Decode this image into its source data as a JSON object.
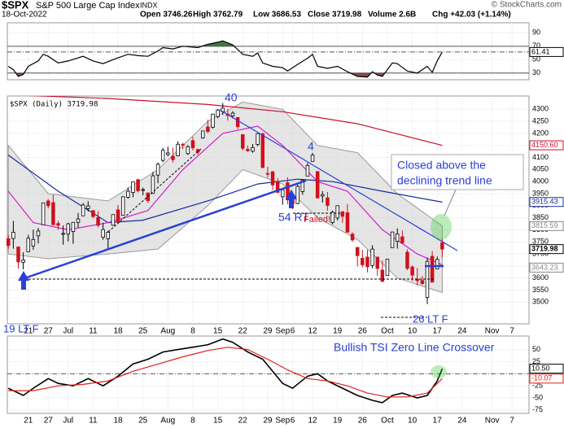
{
  "header": {
    "symbol": "$SPX",
    "name": "S&P 500 Large Cap Index",
    "exchange": "INDX",
    "date": "18-Oct-2022",
    "open": "Open 3746.26",
    "high": "High 3762.79",
    "low": "Low 3686.53",
    "close": "Close 3719.98",
    "volume": "Volume 2.6B",
    "change": "Chg +42.03 (+1.14%)",
    "credit": "© StockCharts.com"
  },
  "annotations": {
    "peak": "40",
    "retest_peak": "4",
    "retest": "54 RT",
    "failed": "Failed!",
    "low1": "19 LT F",
    "low2": "26 LT F",
    "note1": "Closed above the",
    "note2": "declining trend line",
    "tsi_note": "Bullish TSI Zero Line Crossover"
  },
  "chart_data": [
    {
      "type": "line",
      "xlim": [
        -0.2,
        104.4
      ],
      "ylim": [
        20,
        105
      ],
      "yticks": [
        30,
        50,
        70,
        90
      ],
      "overbought": 70,
      "oversold": 30,
      "series": [
        {
          "color": "#000000",
          "x": [
            0,
            1,
            2,
            3,
            4,
            6,
            7,
            8,
            10,
            12,
            15,
            17,
            19,
            21,
            24,
            26,
            28,
            30,
            31,
            33,
            35,
            38,
            40,
            42,
            43,
            45,
            47,
            49,
            50,
            51,
            53,
            55,
            56,
            58,
            60,
            61,
            62,
            64,
            66,
            68,
            70,
            72,
            73,
            74,
            75,
            77,
            78,
            80,
            82,
            84,
            85,
            86,
            87
          ],
          "values": [
            40,
            35,
            25,
            28,
            40,
            48,
            58,
            55,
            45,
            48,
            55,
            48,
            44,
            50,
            58,
            56,
            55,
            63,
            68,
            66,
            70,
            68,
            73,
            76,
            78,
            72,
            58,
            55,
            60,
            45,
            40,
            38,
            33,
            43,
            52,
            58,
            40,
            37,
            40,
            32,
            25,
            24,
            32,
            27,
            25,
            45,
            44,
            33,
            30,
            40,
            31,
            48,
            61.41
          ]
        }
      ],
      "value_tag": 61.41
    },
    {
      "type": "candlestick",
      "legend": "$SPX (Daily) 3719.98",
      "xlim": [
        -0.2,
        104.4
      ],
      "ylim": [
        3410,
        4355
      ],
      "yticks": [
        3500,
        3550,
        3600,
        3650,
        3700,
        3750,
        3800,
        3850,
        3900,
        3950,
        4000,
        4050,
        4100,
        4150,
        4200,
        4250,
        4300
      ],
      "xticks": [
        {
          "value": 4,
          "label": "21"
        },
        {
          "value": 8,
          "label": "27"
        },
        {
          "value": 12,
          "label": "Jul"
        },
        {
          "value": 17,
          "label": "11"
        },
        {
          "value": 22,
          "label": "18"
        },
        {
          "value": 27,
          "label": "25"
        },
        {
          "value": 32,
          "label": "Aug"
        },
        {
          "value": 37,
          "label": "8"
        },
        {
          "value": 42,
          "label": "15"
        },
        {
          "value": 47,
          "label": "22"
        },
        {
          "value": 52,
          "label": "29"
        },
        {
          "value": 55,
          "label": "Sep"
        },
        {
          "value": 57,
          "label": "6"
        },
        {
          "value": 61,
          "label": "12"
        },
        {
          "value": 66,
          "label": "19"
        },
        {
          "value": 71,
          "label": "26"
        },
        {
          "value": 76,
          "label": "Oct"
        },
        {
          "value": 81,
          "label": "10"
        },
        {
          "value": 86,
          "label": "17"
        },
        {
          "value": 91,
          "label": "24"
        },
        {
          "value": 97,
          "label": "Nov"
        },
        {
          "value": 101,
          "label": "7"
        }
      ],
      "open": [
        3763,
        3764,
        3729,
        3665,
        3709,
        3733,
        3775,
        3821,
        3920,
        3913,
        3826,
        3785,
        3782,
        3793,
        3831,
        3858,
        3888,
        3880,
        3851,
        3769,
        3763,
        3819,
        3883,
        3860,
        3935,
        3955,
        4008,
        3965,
        3953,
        3951,
        4027,
        4088,
        4112,
        4105,
        4107,
        4155,
        4116,
        4170,
        4133,
        4181,
        4227,
        4225,
        4270,
        4290,
        4280,
        4273,
        4266,
        4195,
        4134,
        4126,
        4154,
        4198,
        4034,
        4041,
        4000,
        3937,
        3995,
        3930,
        3909,
        3959,
        4023,
        4084,
        4042,
        3940,
        3933,
        3830,
        3849,
        3875,
        3871,
        3782,
        3727,
        3682,
        3687,
        3652,
        3687,
        3633,
        3610,
        3726,
        3753,
        3771,
        3707,
        3646,
        3595,
        3590,
        3520,
        3690,
        3638,
        3746.26
      ],
      "high": [
        3778,
        3837,
        3729,
        3707,
        3779,
        3801,
        3808,
        3913,
        3928,
        3945,
        3837,
        3818,
        3829,
        3832,
        3870,
        3911,
        3919,
        3880,
        3877,
        3829,
        3796,
        3863,
        3903,
        3939,
        3975,
        3999,
        4012,
        3975,
        3954,
        4040,
        4079,
        4140,
        4145,
        4141,
        4167,
        4161,
        4151,
        4186,
        4137,
        4211,
        4257,
        4280,
        4301,
        4326,
        4302,
        4292,
        4266,
        4195,
        4149,
        4156,
        4200,
        4204,
        4062,
        4044,
        4015,
        3970,
        4018,
        3943,
        3987,
        4010,
        4077,
        4119,
        4042,
        3961,
        3957,
        3880,
        3900,
        3877,
        3907,
        3790,
        3727,
        3716,
        3717,
        3736,
        3687,
        3672,
        3679,
        3792,
        3806,
        3797,
        3719,
        3652,
        3641,
        3608,
        3685,
        3712,
        3689,
        3762.79
      ],
      "low": [
        3722,
        3722,
        3639,
        3636,
        3709,
        3717,
        3743,
        3821,
        3889,
        3820,
        3800,
        3738,
        3752,
        3742,
        3809,
        3858,
        3876,
        3847,
        3810,
        3759,
        3722,
        3817,
        3824,
        3860,
        3929,
        3935,
        3955,
        3944,
        3911,
        3950,
        3993,
        4080,
        4104,
        4079,
        4107,
        4135,
        4111,
        4129,
        4112,
        4178,
        4200,
        4220,
        4263,
        4277,
        4253,
        4262,
        4218,
        4129,
        4123,
        4120,
        4147,
        4057,
        4017,
        3965,
        3954,
        3904,
        3906,
        3886,
        3906,
        3945,
        4023,
        4083,
        3932,
        3913,
        3879,
        3822,
        3839,
        3829,
        3789,
        3750,
        3648,
        3644,
        3623,
        3640,
        3610,
        3584,
        3610,
        3726,
        3722,
        3743,
        3633,
        3588,
        3569,
        3571,
        3492,
        3582,
        3638,
        3686.53
      ],
      "close": [
        3735,
        3790,
        3667,
        3675,
        3765,
        3760,
        3795,
        3912,
        3900,
        3821,
        3819,
        3785,
        3825,
        3831,
        3845,
        3903,
        3899,
        3855,
        3819,
        3801,
        3790,
        3863,
        3831,
        3937,
        3960,
        3999,
        3962,
        3967,
        3921,
        4024,
        4072,
        4130,
        4119,
        4091,
        4155,
        4152,
        4145,
        4140,
        4122,
        4210,
        4208,
        4280,
        4297,
        4305,
        4274,
        4284,
        4228,
        4138,
        4128,
        4141,
        4199,
        4058,
        4031,
        3986,
        3955,
        3966,
        3924,
        3908,
        3980,
        4006,
        4067,
        4110,
        3932,
        3946,
        3901,
        3873,
        3900,
        3856,
        3790,
        3758,
        3693,
        3655,
        3647,
        3720,
        3640,
        3586,
        3678,
        3791,
        3783,
        3745,
        3640,
        3612,
        3589,
        3577,
        3669,
        3583,
        3677,
        3719.98
      ],
      "band": {
        "x": [
          0,
          8,
          20,
          30,
          40,
          47,
          55,
          62,
          70,
          78,
          87
        ],
        "upper": [
          4150,
          3950,
          3920,
          4050,
          4250,
          4330,
          4300,
          4150,
          4120,
          3950,
          3816
        ],
        "lower": [
          3700,
          3680,
          3700,
          3720,
          3900,
          4050,
          3990,
          3850,
          3760,
          3600,
          3540
        ]
      },
      "overlays": [
        {
          "color": "#c8102e",
          "x": [
            0,
            20,
            40,
            55,
            70,
            87
          ],
          "values": [
            4360,
            4345,
            4320,
            4290,
            4240,
            4150
          ]
        },
        {
          "color": "#1a2a9c",
          "x": [
            0,
            10,
            20,
            27,
            40,
            50,
            58,
            65,
            75,
            87
          ],
          "values": [
            4110,
            3960,
            3830,
            3840,
            3920,
            3990,
            4010,
            4000,
            3960,
            3915
          ]
        },
        {
          "color": "#d21fcf",
          "x": [
            0,
            5,
            12,
            20,
            28,
            35,
            43,
            50,
            55,
            62,
            68,
            75,
            82,
            87
          ],
          "values": [
            3960,
            3830,
            3800,
            3830,
            3880,
            4050,
            4200,
            4230,
            4150,
            4000,
            3960,
            3800,
            3700,
            3655
          ]
        }
      ],
      "price_tags": [
        {
          "value": 4150.6,
          "label": "4150.60",
          "color": "#c8102e"
        },
        {
          "value": 3915.43,
          "color": "#1a2a9c"
        },
        {
          "value": 3815.59,
          "color": "#888888"
        },
        {
          "value": 3719.98,
          "color": "#000000"
        },
        {
          "value": 3643.23,
          "color": "#888888"
        }
      ]
    },
    {
      "type": "line",
      "xlim": [
        -0.2,
        104.4
      ],
      "ylim": [
        -82,
        78
      ],
      "yticks": [
        -75,
        -50,
        -25,
        25,
        50
      ],
      "zero_line": 0,
      "xticks": [
        {
          "value": 4,
          "label": "21"
        },
        {
          "value": 8,
          "label": "27"
        },
        {
          "value": 12,
          "label": "Jul"
        },
        {
          "value": 17,
          "label": "11"
        },
        {
          "value": 22,
          "label": "18"
        },
        {
          "value": 27,
          "label": "25"
        },
        {
          "value": 32,
          "label": "Aug"
        },
        {
          "value": 37,
          "label": "8"
        },
        {
          "value": 42,
          "label": "15"
        },
        {
          "value": 47,
          "label": "22"
        },
        {
          "value": 52,
          "label": "29"
        },
        {
          "value": 55,
          "label": "Sep"
        },
        {
          "value": 57,
          "label": "6"
        },
        {
          "value": 61,
          "label": "12"
        },
        {
          "value": 66,
          "label": "19"
        },
        {
          "value": 71,
          "label": "26"
        },
        {
          "value": 76,
          "label": "Oct"
        },
        {
          "value": 81,
          "label": "10"
        },
        {
          "value": 86,
          "label": "17"
        },
        {
          "value": 91,
          "label": "24"
        },
        {
          "value": 97,
          "label": "Nov"
        },
        {
          "value": 101,
          "label": "7"
        }
      ],
      "series": [
        {
          "color": "#000000",
          "x": [
            0,
            3,
            5,
            8,
            10,
            13,
            16,
            19,
            22,
            25,
            28,
            31,
            34,
            37,
            40,
            43,
            45,
            48,
            51,
            53,
            55,
            57,
            60,
            62,
            64,
            67,
            70,
            73,
            75,
            77,
            79,
            82,
            84,
            86,
            87
          ],
          "values": [
            -30,
            -45,
            -30,
            -10,
            -20,
            -25,
            -10,
            -25,
            -5,
            20,
            30,
            45,
            50,
            55,
            60,
            72,
            65,
            45,
            30,
            5,
            -20,
            -30,
            -5,
            0,
            -15,
            -30,
            -45,
            -55,
            -60,
            -45,
            -40,
            -50,
            -45,
            -15,
            10.5
          ]
        },
        {
          "color": "#e0201b",
          "x": [
            0,
            5,
            10,
            15,
            20,
            25,
            30,
            35,
            40,
            44,
            48,
            52,
            56,
            60,
            64,
            68,
            72,
            76,
            80,
            84,
            87
          ],
          "values": [
            -35,
            -35,
            -25,
            -22,
            -15,
            5,
            20,
            35,
            48,
            55,
            50,
            30,
            8,
            -10,
            -15,
            -25,
            -40,
            -48,
            -48,
            -40,
            -10.07
          ]
        }
      ],
      "value_tags": [
        {
          "value": 10.5,
          "label": "10.50",
          "color": "#000000"
        },
        {
          "value": -10.07,
          "color": "#e0201b"
        }
      ]
    }
  ]
}
